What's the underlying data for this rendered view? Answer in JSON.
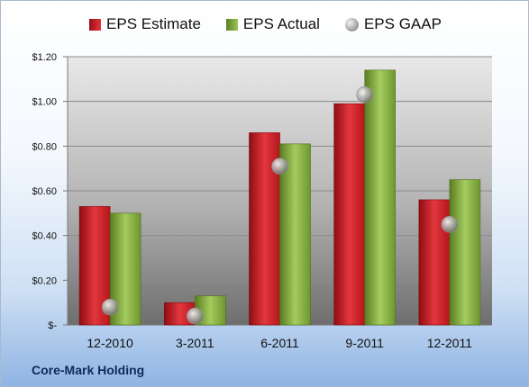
{
  "chart_data": {
    "type": "bar",
    "categories": [
      "12-2010",
      "3-2011",
      "6-2011",
      "9-2011",
      "12-2011"
    ],
    "series": [
      {
        "name": "EPS Estimate",
        "values": [
          0.53,
          0.1,
          0.86,
          0.99,
          0.56
        ],
        "color": "#d42027"
      },
      {
        "name": "EPS Actual",
        "values": [
          0.5,
          0.13,
          0.81,
          1.14,
          0.65
        ],
        "color": "#8bb43c"
      },
      {
        "name": "EPS GAAP",
        "values": [
          0.08,
          0.04,
          0.71,
          1.03,
          0.45
        ],
        "color": "#b0b0b0",
        "marker": "circle"
      }
    ],
    "ylim": [
      0,
      1.2
    ],
    "yticks": [
      0,
      0.2,
      0.4,
      0.6,
      0.8,
      1.0,
      1.2
    ],
    "ytick_labels": [
      "$-",
      "$0.20",
      "$0.40",
      "$0.60",
      "$0.80",
      "$1.00",
      "$1.20"
    ],
    "legend_position": "top",
    "grid": true
  },
  "footer": {
    "company": "Core-Mark Holding"
  }
}
